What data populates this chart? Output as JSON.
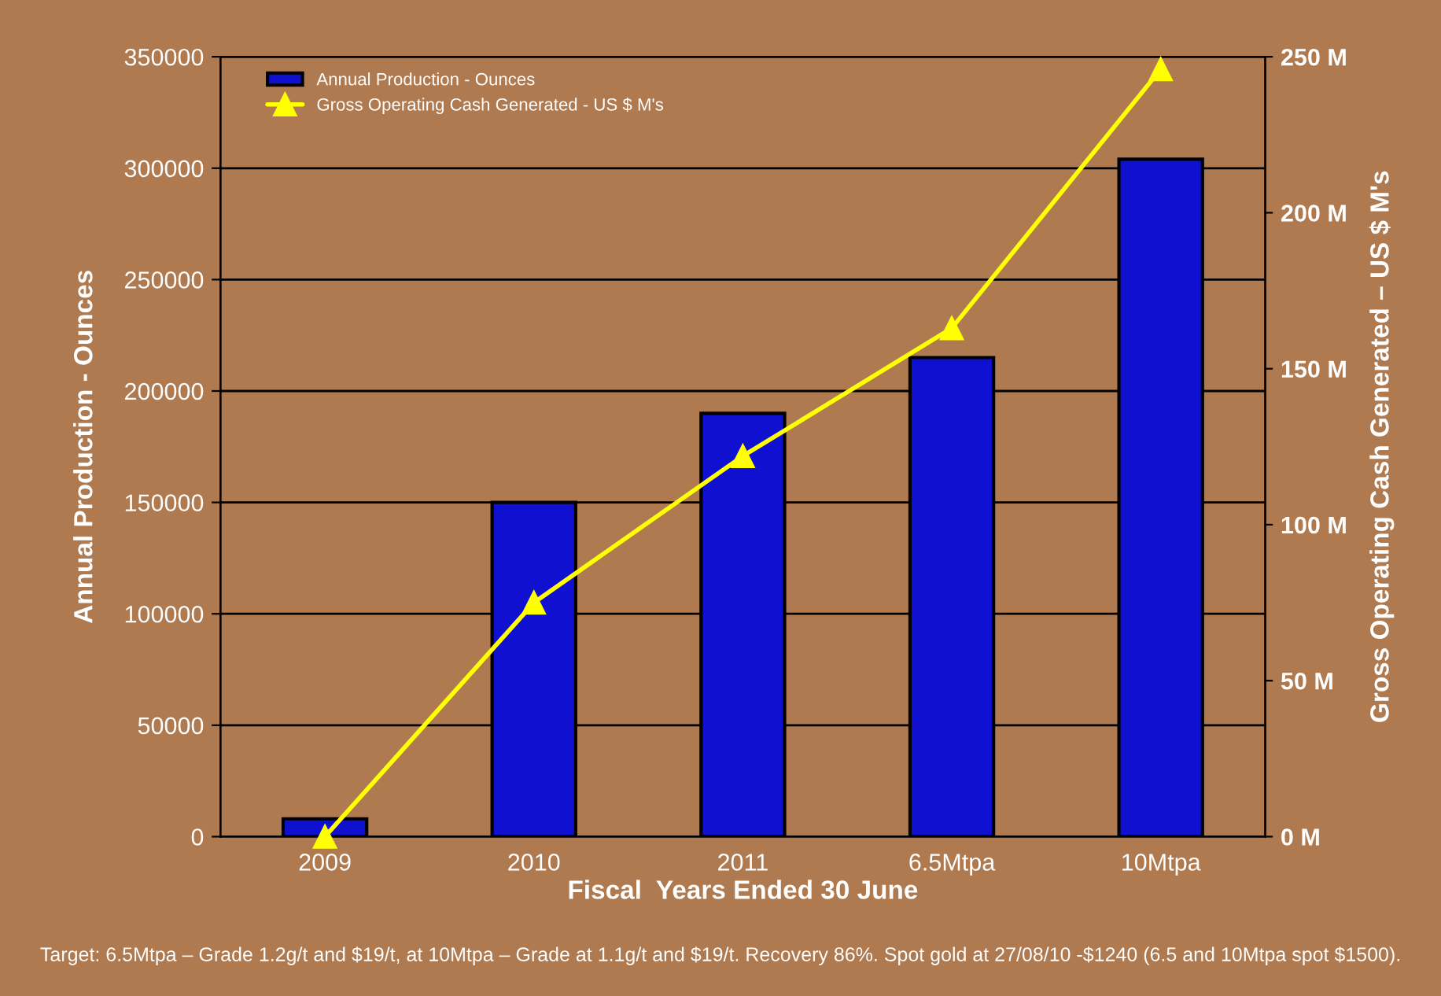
{
  "chart_data": {
    "type": "bar",
    "xlabel": "Fiscal  Years Ended 30 June",
    "ylabel": "Annual Production - Ounces",
    "y2label": "Gross Operating Cash Generated – US $ M's",
    "categories": [
      "2009",
      "2010",
      "2011",
      "6.5Mtpa",
      "10Mtpa"
    ],
    "series": [
      {
        "name": "Annual Production - Ounces",
        "color": "#1010d0",
        "values": [
          8000,
          150000,
          190000,
          215000,
          304000
        ]
      },
      {
        "name": "Gross Operating Cash Generated - US $ M's",
        "type": "line",
        "axis": "y2",
        "color": "#ffff00",
        "marker": "triangle",
        "values": [
          0,
          75,
          122,
          163,
          246
        ]
      }
    ],
    "ylim": [
      0,
      350000
    ],
    "yticks": [
      0,
      50000,
      100000,
      150000,
      200000,
      250000,
      300000,
      350000
    ],
    "y2lim": [
      0,
      250
    ],
    "y2ticks": [
      {
        "value": 0,
        "label": "0 M"
      },
      {
        "value": 50,
        "label": "50 M"
      },
      {
        "value": 100,
        "label": "100 M"
      },
      {
        "value": 150,
        "label": "150 M"
      },
      {
        "value": 200,
        "label": "200 M"
      },
      {
        "value": 250,
        "label": "250 M"
      }
    ],
    "grid": "y",
    "legend": "top left",
    "annotations": [
      "Target: 6.5Mtpa – Grade 1.2g/t and $19/t, at 10Mtpa – Grade at 1.1g/t and $19/t. Recovery 86%. Spot gold at 27/08/10 -$1240 (6.5 and 10Mtpa spot $1500)."
    ]
  }
}
